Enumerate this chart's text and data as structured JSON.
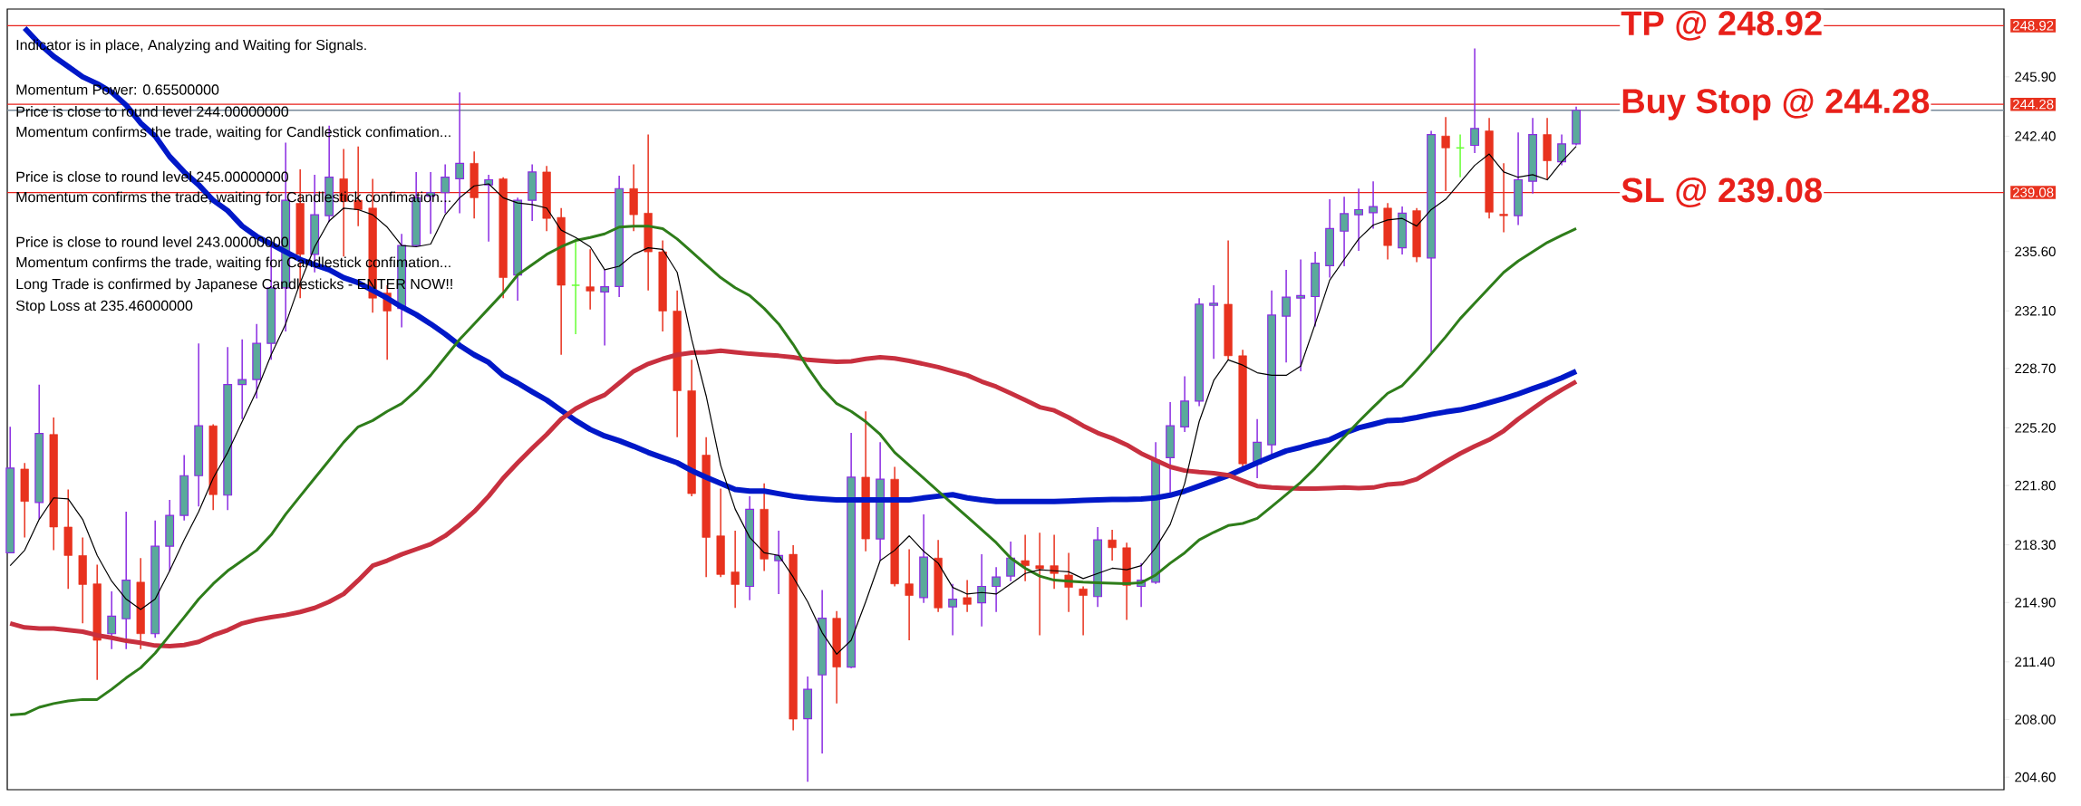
{
  "chart_data": {
    "type": "candlestick",
    "categories": [
      null,
      null,
      null,
      null,
      null,
      null,
      null,
      null,
      null,
      null,
      null,
      null,
      null,
      null,
      null,
      null,
      null,
      null,
      null,
      null,
      null,
      null,
      null,
      null,
      null,
      null,
      null,
      null,
      null,
      null,
      null,
      null,
      null,
      null,
      null,
      null,
      null,
      null,
      null,
      null,
      null,
      null,
      null,
      null,
      null,
      null,
      null,
      null,
      null,
      null,
      null,
      null,
      null,
      null,
      null,
      null,
      null,
      null,
      null,
      null,
      null,
      null,
      null,
      null,
      null,
      null,
      null,
      null,
      null,
      null,
      null,
      null,
      null,
      null,
      null,
      null,
      null,
      null,
      null,
      null,
      null,
      null,
      null,
      null,
      null,
      null,
      null,
      null,
      null,
      null,
      null,
      null,
      null,
      null,
      null,
      null,
      null,
      null,
      null,
      null,
      null,
      null,
      null,
      null,
      null,
      null,
      null,
      null,
      null
    ],
    "ohlc": [
      [
        217.83,
        225.26,
        217.83,
        222.83
      ],
      [
        222.77,
        223.13,
        218.74,
        220.86
      ],
      [
        220.8,
        227.75,
        219.8,
        224.87
      ],
      [
        224.81,
        225.81,
        217.98,
        219.35
      ],
      [
        219.35,
        221.56,
        215.7,
        217.67
      ],
      [
        217.67,
        218.74,
        213.67,
        215.96
      ],
      [
        216.0,
        217.13,
        210.33,
        212.67
      ],
      [
        213.06,
        215.55,
        212.15,
        214.09
      ],
      [
        213.94,
        220.25,
        212.15,
        216.22
      ],
      [
        216.1,
        217.52,
        212.15,
        213.06
      ],
      [
        213.06,
        219.74,
        212.82,
        218.22
      ],
      [
        218.22,
        220.95,
        216.76,
        220.04
      ],
      [
        220.04,
        223.59,
        219.74,
        222.38
      ],
      [
        222.38,
        230.18,
        220.56,
        225.32
      ],
      [
        225.32,
        225.41,
        220.35,
        221.26
      ],
      [
        221.23,
        229.97,
        220.35,
        227.75
      ],
      [
        227.75,
        230.42,
        225.72,
        228.05
      ],
      [
        228.05,
        231.33,
        226.93,
        230.18
      ],
      [
        230.18,
        235.95,
        229.21,
        233.46
      ],
      [
        233.46,
        242.02,
        230.88,
        238.62
      ],
      [
        238.44,
        240.44,
        232.85,
        235.43
      ],
      [
        235.43,
        240.13,
        234.37,
        237.77
      ],
      [
        237.71,
        243.02,
        237.34,
        239.98
      ],
      [
        239.89,
        241.65,
        235.3,
        238.56
      ],
      [
        238.62,
        241.8,
        237.1,
        238.07
      ],
      [
        238.16,
        239.89,
        232.0,
        232.85
      ],
      [
        233.15,
        233.61,
        229.21,
        232.09
      ],
      [
        232.24,
        236.64,
        231.12,
        235.95
      ],
      [
        235.95,
        240.29,
        235.88,
        238.77
      ],
      [
        238.86,
        240.29,
        236.64,
        239.07
      ],
      [
        239.07,
        240.74,
        237.86,
        239.98
      ],
      [
        239.89,
        244.99,
        237.86,
        240.8
      ],
      [
        240.8,
        241.5,
        237.55,
        238.77
      ],
      [
        239.53,
        240.13,
        236.19,
        239.83
      ],
      [
        239.89,
        239.98,
        232.85,
        234.06
      ],
      [
        234.22,
        238.77,
        232.7,
        238.62
      ],
      [
        238.62,
        240.74,
        237.4,
        240.29
      ],
      [
        240.29,
        240.65,
        236.8,
        237.55
      ],
      [
        237.61,
        238.16,
        229.51,
        233.61
      ],
      [
        233.61,
        236.34,
        230.73,
        233.61
      ],
      [
        233.52,
        235.73,
        232.18,
        233.27
      ],
      [
        233.21,
        234.52,
        230.06,
        233.52
      ],
      [
        233.54,
        240.07,
        232.91,
        239.31
      ],
      [
        239.31,
        240.74,
        236.8,
        237.77
      ],
      [
        237.86,
        242.5,
        233.3,
        235.58
      ],
      [
        235.58,
        236.25,
        230.88,
        232.09
      ],
      [
        232.09,
        233.3,
        224.65,
        227.39
      ],
      [
        227.39,
        229.21,
        221.17,
        221.32
      ],
      [
        223.59,
        224.65,
        216.4,
        218.74
      ],
      [
        218.83,
        221.62,
        216.4,
        216.55
      ],
      [
        216.7,
        219.13,
        214.58,
        215.96
      ],
      [
        215.85,
        221.17,
        215.04,
        220.4
      ],
      [
        220.4,
        221.92,
        216.76,
        217.46
      ],
      [
        217.37,
        219.13,
        215.4,
        217.67
      ],
      [
        217.74,
        218.28,
        207.36,
        208.02
      ],
      [
        208.05,
        210.54,
        204.32,
        209.78
      ],
      [
        210.63,
        215.64,
        205.99,
        213.97
      ],
      [
        213.97,
        214.4,
        208.94,
        211.09
      ],
      [
        211.09,
        224.9,
        211.03,
        222.29
      ],
      [
        222.29,
        226.17,
        217.92,
        218.65
      ],
      [
        218.65,
        224.35,
        217.37,
        222.17
      ],
      [
        222.17,
        222.9,
        215.85,
        216.0
      ],
      [
        216.0,
        218.04,
        212.67,
        215.31
      ],
      [
        215.19,
        220.1,
        214.88,
        217.58
      ],
      [
        217.52,
        218.59,
        214.34,
        214.58
      ],
      [
        214.64,
        216.0,
        212.97,
        215.1
      ],
      [
        215.19,
        216.22,
        214.34,
        214.79
      ],
      [
        214.88,
        217.74,
        213.49,
        215.85
      ],
      [
        215.85,
        216.98,
        214.34,
        216.4
      ],
      [
        216.46,
        218.5,
        216.16,
        217.52
      ],
      [
        217.37,
        218.89,
        216.16,
        217.07
      ],
      [
        217.07,
        219.01,
        212.97,
        216.89
      ],
      [
        217.07,
        218.89,
        215.7,
        216.61
      ],
      [
        216.52,
        217.83,
        214.34,
        215.79
      ],
      [
        215.7,
        215.85,
        212.97,
        215.31
      ],
      [
        215.25,
        219.35,
        214.64,
        218.59
      ],
      [
        218.59,
        219.19,
        217.37,
        218.13
      ],
      [
        218.13,
        218.43,
        213.88,
        215.91
      ],
      [
        215.85,
        217.22,
        214.64,
        216.22
      ],
      [
        216.1,
        224.35,
        216.0,
        223.29
      ],
      [
        223.44,
        226.72,
        221.32,
        225.32
      ],
      [
        225.26,
        228.24,
        224.96,
        226.78
      ],
      [
        226.78,
        232.85,
        226.48,
        232.49
      ],
      [
        232.42,
        233.61,
        229.27,
        232.55
      ],
      [
        232.49,
        236.25,
        229.21,
        229.45
      ],
      [
        229.45,
        229.81,
        222.83,
        223.08
      ],
      [
        223.08,
        225.72,
        222.23,
        224.35
      ],
      [
        224.2,
        233.3,
        223.59,
        231.85
      ],
      [
        231.79,
        234.52,
        229.06,
        232.91
      ],
      [
        232.85,
        235.13,
        228.54,
        233.0
      ],
      [
        232.94,
        235.58,
        231.18,
        234.91
      ],
      [
        234.76,
        238.68,
        234.06,
        236.95
      ],
      [
        236.8,
        238.83,
        234.73,
        237.83
      ],
      [
        237.77,
        239.31,
        235.64,
        238.07
      ],
      [
        237.89,
        239.74,
        236.95,
        238.25
      ],
      [
        238.16,
        238.46,
        235.13,
        235.95
      ],
      [
        235.82,
        238.25,
        235.43,
        237.86
      ],
      [
        238.01,
        238.16,
        234.97,
        235.28
      ],
      [
        235.22,
        242.71,
        229.66,
        242.5
      ],
      [
        242.41,
        243.53,
        239.16,
        241.71
      ],
      [
        241.71,
        242.5,
        239.98,
        241.71
      ],
      [
        241.86,
        247.57,
        241.41,
        242.86
      ],
      [
        242.71,
        243.47,
        237.55,
        237.92
      ],
      [
        237.8,
        240.8,
        236.73,
        237.71
      ],
      [
        237.71,
        242.62,
        237.16,
        239.83
      ],
      [
        239.74,
        243.47,
        239.01,
        242.5
      ],
      [
        242.5,
        243.47,
        239.83,
        240.95
      ],
      [
        240.89,
        242.5,
        240.68,
        241.95
      ],
      [
        241.95,
        244.14,
        241.86,
        243.93
      ]
    ],
    "series": [
      {
        "type": "line",
        "color": "#0018c8",
        "values": [
          null,
          248.78,
          247.87,
          247.11,
          246.51,
          245.9,
          245.5,
          245.0,
          244.23,
          243.17,
          242.41,
          241.2,
          240.29,
          239.53,
          238.62,
          238.01,
          237.1,
          236.49,
          236.04,
          235.58,
          235.13,
          234.82,
          234.52,
          234.06,
          233.76,
          233.31,
          232.85,
          232.33,
          231.88,
          231.33,
          230.73,
          230.06,
          229.51,
          229.06,
          228.3,
          227.84,
          227.33,
          226.84,
          226.23,
          225.63,
          225.11,
          224.72,
          224.44,
          224.11,
          223.75,
          223.44,
          223.14,
          222.68,
          222.29,
          221.92,
          221.56,
          221.47,
          221.47,
          221.32,
          221.17,
          221.07,
          221.01,
          220.95,
          220.95,
          220.95,
          220.95,
          220.95,
          220.95,
          221.07,
          221.17,
          221.26,
          221.07,
          220.95,
          220.86,
          220.86,
          220.86,
          220.86,
          220.86,
          220.89,
          220.92,
          220.95,
          220.98,
          220.98,
          221.01,
          221.07,
          221.23,
          221.47,
          221.77,
          222.08,
          222.38,
          222.77,
          223.14,
          223.5,
          223.84,
          224.05,
          224.29,
          224.5,
          224.9,
          225.2,
          225.41,
          225.63,
          225.66,
          225.81,
          225.99,
          226.14,
          226.26,
          226.45,
          226.69,
          226.93,
          227.2,
          227.51,
          227.81,
          228.15,
          228.54
        ]
      },
      {
        "type": "line",
        "color": "#c8303f",
        "values": [
          213.67,
          213.43,
          213.37,
          213.37,
          213.27,
          213.18,
          212.97,
          212.82,
          212.64,
          212.52,
          212.36,
          212.33,
          212.39,
          212.58,
          212.97,
          213.27,
          213.67,
          213.88,
          214.03,
          214.16,
          214.34,
          214.58,
          214.94,
          215.4,
          216.2,
          217.07,
          217.37,
          217.74,
          218.04,
          218.34,
          218.83,
          219.5,
          220.26,
          221.17,
          222.23,
          223.14,
          223.99,
          224.81,
          225.72,
          226.33,
          226.78,
          227.14,
          227.84,
          228.54,
          228.97,
          229.27,
          229.51,
          229.63,
          229.66,
          229.75,
          229.66,
          229.57,
          229.51,
          229.45,
          229.36,
          229.21,
          229.15,
          229.09,
          229.12,
          229.27,
          229.36,
          229.3,
          229.15,
          228.97,
          228.78,
          228.54,
          228.3,
          227.93,
          227.63,
          227.24,
          226.84,
          226.42,
          226.23,
          225.81,
          225.32,
          224.9,
          224.59,
          224.2,
          223.69,
          223.29,
          222.9,
          222.68,
          222.59,
          222.53,
          222.41,
          222.08,
          221.77,
          221.68,
          221.65,
          221.62,
          221.62,
          221.65,
          221.68,
          221.65,
          221.68,
          221.86,
          221.92,
          222.17,
          222.68,
          223.2,
          223.69,
          224.11,
          224.5,
          225.02,
          225.72,
          226.33,
          226.93,
          227.45,
          227.93
        ]
      },
      {
        "type": "line",
        "color": "#2e7d1a",
        "values": [
          208.27,
          208.33,
          208.72,
          208.94,
          209.09,
          209.18,
          209.18,
          209.78,
          210.45,
          211.05,
          211.91,
          212.97,
          214.03,
          215.1,
          216.0,
          216.77,
          217.37,
          217.98,
          218.89,
          220.1,
          221.17,
          222.23,
          223.29,
          224.35,
          225.26,
          225.63,
          226.17,
          226.63,
          227.39,
          228.3,
          229.36,
          230.42,
          231.33,
          232.24,
          233.15,
          234.22,
          234.82,
          235.43,
          235.88,
          236.25,
          236.43,
          236.64,
          237.04,
          237.1,
          237.1,
          236.95,
          236.34,
          235.58,
          234.82,
          234.06,
          233.46,
          233.0,
          232.24,
          231.33,
          230.12,
          228.75,
          227.54,
          226.63,
          226.17,
          225.57,
          224.81,
          223.75,
          222.99,
          222.23,
          221.47,
          220.71,
          219.95,
          219.19,
          218.43,
          217.52,
          216.92,
          216.46,
          216.22,
          216.16,
          216.1,
          216.07,
          216.04,
          216.01,
          216.07,
          216.52,
          217.22,
          217.83,
          218.59,
          219.04,
          219.44,
          219.56,
          219.86,
          220.56,
          221.26,
          221.99,
          222.83,
          223.75,
          224.66,
          225.57,
          226.42,
          227.24,
          227.69,
          228.6,
          229.57,
          230.57,
          231.64,
          232.55,
          233.46,
          234.37,
          235.04,
          235.58,
          236.13,
          236.55,
          236.95
        ]
      },
      {
        "type": "line",
        "color": "#000000",
        "values": [
          217.07,
          217.98,
          219.8,
          221.07,
          221.01,
          219.8,
          217.68,
          216.16,
          215.1,
          214.49,
          215.1,
          216.77,
          218.59,
          220.26,
          222.23,
          223.75,
          225.57,
          227.39,
          229.51,
          231.33,
          233.76,
          235.88,
          237.4,
          238.16,
          238.07,
          237.77,
          237.04,
          235.95,
          235.88,
          236.04,
          237.77,
          238.77,
          239.47,
          239.59,
          238.77,
          238.46,
          238.37,
          238.16,
          236.86,
          236.43,
          235.88,
          234.52,
          234.73,
          235.43,
          235.82,
          235.73,
          234.37,
          230.42,
          227.08,
          222.99,
          220.41,
          218.74,
          217.83,
          217.68,
          216.4,
          214.94,
          213.12,
          211.85,
          212.67,
          214.94,
          217.37,
          217.98,
          218.83,
          217.92,
          217.22,
          215.79,
          215.4,
          215.49,
          215.4,
          216.0,
          216.61,
          216.83,
          216.77,
          216.71,
          216.31,
          216.61,
          216.92,
          216.83,
          217.07,
          218.13,
          219.5,
          221.92,
          225.57,
          227.99,
          229.21,
          228.9,
          228.45,
          228.3,
          228.3,
          228.84,
          231.33,
          233.91,
          235.13,
          236.34,
          237.16,
          237.46,
          237.55,
          237.1,
          238.07,
          238.68,
          239.68,
          240.68,
          241.35,
          240.29,
          239.98,
          240.13,
          239.83,
          240.89,
          241.8
        ]
      }
    ],
    "ylim": [
      203.86,
      249.9
    ],
    "yticks": [
      {
        "value": 245.9,
        "label": "245.90"
      },
      {
        "value": 242.4,
        "label": "242.40"
      },
      {
        "value": 235.6,
        "label": "235.60"
      },
      {
        "value": 232.1,
        "label": "232.10"
      },
      {
        "value": 228.7,
        "label": "228.70"
      },
      {
        "value": 225.2,
        "label": "225.20"
      },
      {
        "value": 221.8,
        "label": "221.80"
      },
      {
        "value": 218.3,
        "label": "218.30"
      },
      {
        "value": 214.9,
        "label": "214.90"
      },
      {
        "value": 211.4,
        "label": "211.40"
      },
      {
        "value": 208.0,
        "label": "208.00"
      },
      {
        "value": 204.6,
        "label": "204.60"
      }
    ],
    "tick_labels": "y",
    "ref_lines": [
      {
        "axis": "y",
        "value": 248.92,
        "label": "TP @ 248.92",
        "color": "#e8201a"
      },
      {
        "axis": "y",
        "value": 244.28,
        "label": "Buy Stop @ 244.28",
        "color": "#e8201a"
      },
      {
        "axis": "y",
        "value": 239.08,
        "label": "SL @ 239.08",
        "color": "#e8201a"
      },
      {
        "axis": "y",
        "value": 243.93,
        "color": "#778899"
      }
    ],
    "annotations": [
      "Indicator is in place, Analyzing and Waiting for Signals.",
      "Momentum Power: 0.65500000",
      "Price is close to round level 244.00000000",
      "Momentum confirms the trade, waiting for Candlestick confimation...",
      "Price is close to round level 245.00000000",
      "Momentum confirms the trade, waiting for Candlestick confimation...",
      "Price is close to round level 243.00000000",
      "Momentum confirms the trade, waiting for Candlestick confimation...",
      "Long Trade is confirmed by Japanese Candlesticks - ENTER NOW!!",
      "Stop Loss at 235.46000000",
      "248.92",
      "244.28",
      "239.08"
    ]
  }
}
